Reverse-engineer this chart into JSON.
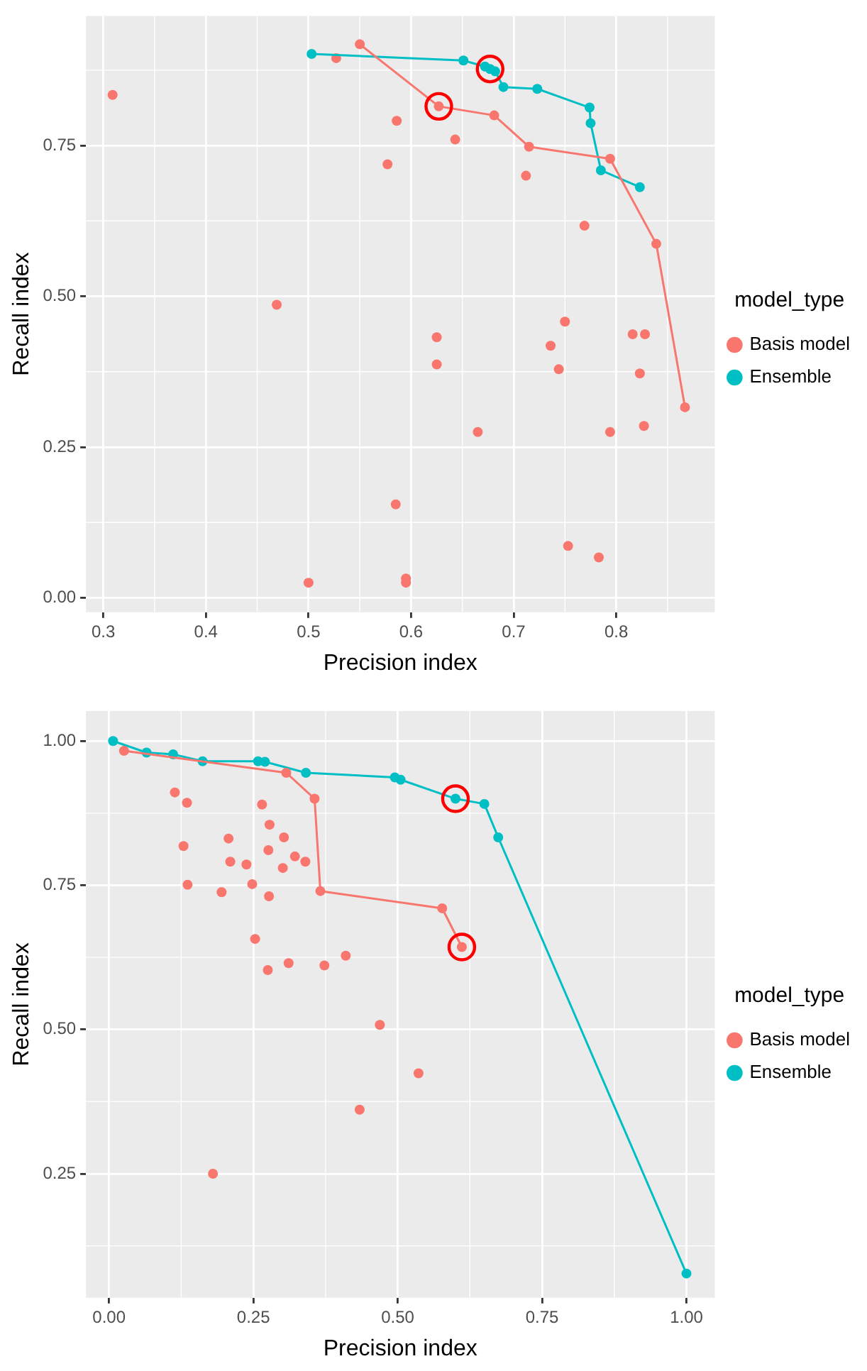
{
  "chart_data": [
    {
      "type": "scatter",
      "xlabel": "Precision index",
      "ylabel": "Recall index",
      "legend_title": "model_type",
      "legend": "right",
      "grid": true,
      "marker": "circle",
      "xlim": [
        0.283,
        0.896
      ],
      "xticks": [
        0.3,
        0.4,
        0.5,
        0.6,
        0.7,
        0.8
      ],
      "ylim": [
        -0.024,
        0.965
      ],
      "yticks": [
        {
          "value": 0,
          "label": "0.00"
        },
        {
          "value": 0.25,
          "label": "0.25"
        },
        {
          "value": 0.5,
          "label": "0.50"
        },
        {
          "value": 0.75,
          "label": "0.75"
        }
      ],
      "series": [
        {
          "type": "line",
          "name": "Basis model",
          "color": "#f8766d",
          "x": [
            0.55,
            0.627,
            0.681,
            0.715,
            0.794,
            0.839,
            0.867
          ],
          "values": [
            0.918,
            0.815,
            0.8,
            0.748,
            0.728,
            0.587,
            0.316
          ]
        },
        {
          "type": "line",
          "name": "Ensemble",
          "color": "#00bfc4",
          "x": [
            0.503,
            0.651,
            0.672,
            0.677,
            0.682,
            0.69,
            0.723,
            0.774,
            0.775,
            0.785,
            0.823
          ],
          "values": [
            0.902,
            0.891,
            0.881,
            0.877,
            0.873,
            0.847,
            0.844,
            0.813,
            0.787,
            0.709,
            0.681
          ]
        },
        {
          "type": "scatter",
          "color": "#f8766d",
          "x": [
            0.309,
            0.527,
            0.586,
            0.643,
            0.577,
            0.712,
            0.769,
            0.469,
            0.625,
            0.625,
            0.75,
            0.736,
            0.744,
            0.816,
            0.828,
            0.823,
            0.827,
            0.794,
            0.665,
            0.585,
            0.753,
            0.783,
            0.5,
            0.595,
            0.595
          ],
          "values": [
            0.834,
            0.895,
            0.791,
            0.76,
            0.719,
            0.7,
            0.617,
            0.486,
            0.432,
            0.387,
            0.458,
            0.418,
            0.379,
            0.437,
            0.437,
            0.372,
            0.285,
            0.275,
            0.275,
            0.155,
            0.086,
            0.067,
            0.025,
            0.032,
            0.025
          ]
        },
        {
          "type": "scatter",
          "color": "#ff0000",
          "line_style": "solid",
          "x": [
            0.627,
            0.677
          ],
          "values": [
            0.815,
            0.877
          ]
        }
      ]
    },
    {
      "type": "scatter",
      "xlabel": "Precision index",
      "ylabel": "Recall index",
      "legend_title": "model_type",
      "legend": "right",
      "grid": true,
      "marker": "circle",
      "xlim": [
        -0.04,
        1.049
      ],
      "xticks": [
        {
          "value": 0,
          "label": "0.00"
        },
        {
          "value": 0.25,
          "label": "0.25"
        },
        {
          "value": 0.5,
          "label": "0.50"
        },
        {
          "value": 0.75,
          "label": "0.75"
        },
        {
          "value": 1,
          "label": "1.00"
        }
      ],
      "ylim": [
        0.035,
        1.052
      ],
      "yticks": [
        {
          "value": 0.25,
          "label": "0.25"
        },
        {
          "value": 0.5,
          "label": "0.50"
        },
        {
          "value": 0.75,
          "label": "0.75"
        },
        {
          "value": 1,
          "label": "1.00"
        }
      ],
      "series": [
        {
          "type": "line",
          "name": "Basis model",
          "color": "#f8766d",
          "x": [
            0.026,
            0.307,
            0.356,
            0.366,
            0.577,
            0.611
          ],
          "values": [
            0.983,
            0.945,
            0.9,
            0.74,
            0.71,
            0.643
          ]
        },
        {
          "type": "line",
          "name": "Ensemble",
          "color": "#00bfc4",
          "x": [
            0.007,
            0.065,
            0.111,
            0.162,
            0.258,
            0.27,
            0.341,
            0.495,
            0.505,
            0.6,
            0.65,
            0.674,
            1.0
          ],
          "values": [
            1.0,
            0.98,
            0.977,
            0.965,
            0.965,
            0.964,
            0.945,
            0.937,
            0.933,
            0.9,
            0.891,
            0.833,
            0.077
          ]
        },
        {
          "type": "scatter",
          "color": "#f8766d",
          "x": [
            0.114,
            0.135,
            0.265,
            0.278,
            0.207,
            0.303,
            0.129,
            0.276,
            0.322,
            0.34,
            0.21,
            0.238,
            0.301,
            0.136,
            0.248,
            0.195,
            0.277,
            0.253,
            0.41,
            0.311,
            0.373,
            0.275,
            0.469,
            0.536,
            0.434,
            0.18
          ],
          "values": [
            0.911,
            0.893,
            0.89,
            0.855,
            0.831,
            0.833,
            0.818,
            0.811,
            0.8,
            0.791,
            0.791,
            0.786,
            0.78,
            0.751,
            0.752,
            0.738,
            0.731,
            0.657,
            0.628,
            0.615,
            0.611,
            0.603,
            0.508,
            0.424,
            0.361,
            0.25
          ]
        },
        {
          "type": "scatter",
          "color": "#ff0000",
          "line_style": "solid",
          "x": [
            0.6,
            0.611
          ],
          "values": [
            0.9,
            0.643
          ]
        }
      ]
    }
  ]
}
